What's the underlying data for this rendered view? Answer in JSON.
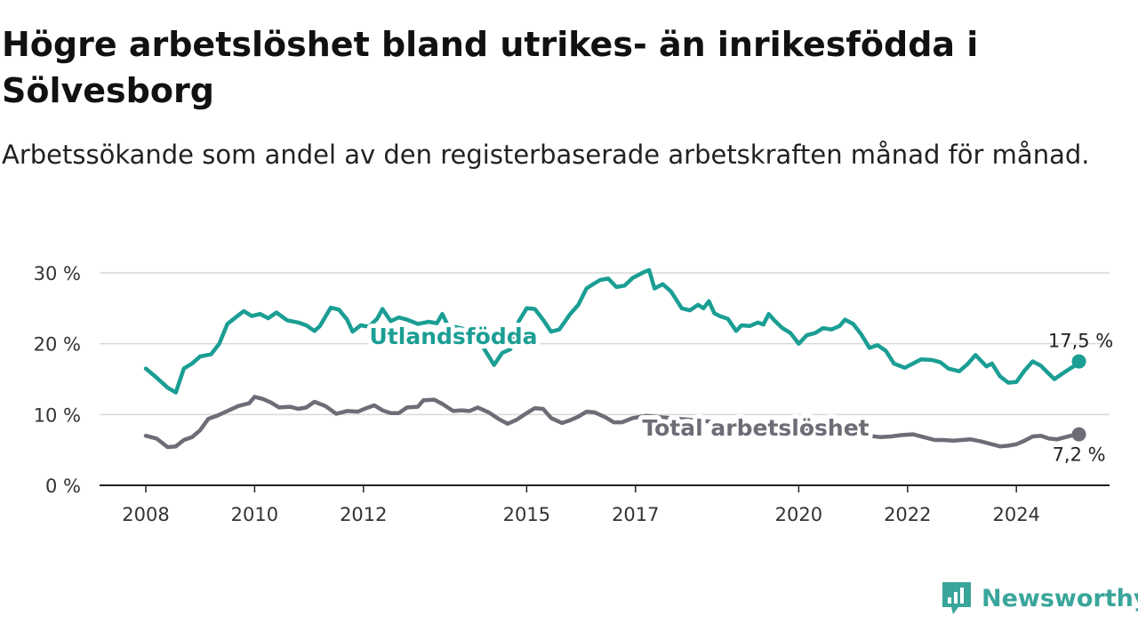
{
  "title": "Högre arbetslöshet bland utrikes- än inrikesfödda i Sölvesborg",
  "subtitle": "Arbetssökande som andel av den registerbaserade arbetskraften månad för månad.",
  "logo": {
    "text": "Newsworthy",
    "icon": "newsworthy-chart-bubble-icon",
    "color": "#3aa59b"
  },
  "chart_data": {
    "type": "line",
    "ylim": [
      0,
      30
    ],
    "y_ticks": [
      {
        "value": 0,
        "label": "0 %"
      },
      {
        "value": 10,
        "label": "10 %"
      },
      {
        "value": 20,
        "label": "20 %"
      },
      {
        "value": 30,
        "label": "30 %"
      }
    ],
    "x_ticks": [
      {
        "value": 2008,
        "label": "2008"
      },
      {
        "value": 2010,
        "label": "2010"
      },
      {
        "value": 2012,
        "label": "2012"
      },
      {
        "value": 2015,
        "label": "2015"
      },
      {
        "value": 2017,
        "label": "2017"
      },
      {
        "value": 2020,
        "label": "2020"
      },
      {
        "value": 2022,
        "label": "2022"
      },
      {
        "value": 2024,
        "label": "2024"
      }
    ],
    "grid": true,
    "series": [
      {
        "name": "Utlandsfödda",
        "color": "#1b9e94",
        "end_label": "17,5 %",
        "points": [
          [
            2008.0,
            16.5
          ],
          [
            2008.2,
            15.2
          ],
          [
            2008.4,
            13.8
          ],
          [
            2008.55,
            13.1
          ],
          [
            2008.7,
            16.5
          ],
          [
            2008.85,
            17.2
          ],
          [
            2009.0,
            18.2
          ],
          [
            2009.2,
            18.5
          ],
          [
            2009.35,
            20.0
          ],
          [
            2009.5,
            22.8
          ],
          [
            2009.7,
            24.0
          ],
          [
            2009.8,
            24.6
          ],
          [
            2009.95,
            23.9
          ],
          [
            2010.1,
            24.2
          ],
          [
            2010.25,
            23.6
          ],
          [
            2010.4,
            24.4
          ],
          [
            2010.6,
            23.3
          ],
          [
            2010.8,
            23.0
          ],
          [
            2010.95,
            22.6
          ],
          [
            2011.1,
            21.8
          ],
          [
            2011.2,
            22.5
          ],
          [
            2011.4,
            25.1
          ],
          [
            2011.55,
            24.8
          ],
          [
            2011.7,
            23.4
          ],
          [
            2011.8,
            21.7
          ],
          [
            2011.95,
            22.6
          ],
          [
            2012.1,
            22.4
          ],
          [
            2012.25,
            23.5
          ],
          [
            2012.35,
            24.9
          ],
          [
            2012.5,
            23.2
          ],
          [
            2012.65,
            23.7
          ],
          [
            2012.8,
            23.4
          ],
          [
            2013.0,
            22.8
          ],
          [
            2013.2,
            23.1
          ],
          [
            2013.35,
            22.9
          ],
          [
            2013.45,
            24.2
          ],
          [
            2013.55,
            22.6
          ],
          [
            2014.0,
            21.8
          ],
          [
            2014.2,
            19.5
          ],
          [
            2014.4,
            17.0
          ],
          [
            2014.55,
            18.7
          ],
          [
            2014.7,
            19.2
          ],
          [
            2014.85,
            23.1
          ],
          [
            2015.0,
            25.0
          ],
          [
            2015.15,
            24.9
          ],
          [
            2015.3,
            23.4
          ],
          [
            2015.45,
            21.7
          ],
          [
            2015.6,
            22.0
          ],
          [
            2015.8,
            24.2
          ],
          [
            2015.95,
            25.5
          ],
          [
            2016.1,
            27.8
          ],
          [
            2016.2,
            28.3
          ],
          [
            2016.35,
            29.0
          ],
          [
            2016.5,
            29.2
          ],
          [
            2016.65,
            28.0
          ],
          [
            2016.8,
            28.2
          ],
          [
            2016.95,
            29.3
          ],
          [
            2017.15,
            30.1
          ],
          [
            2017.25,
            30.4
          ],
          [
            2017.35,
            27.8
          ],
          [
            2017.5,
            28.4
          ],
          [
            2017.65,
            27.4
          ],
          [
            2017.85,
            25.0
          ],
          [
            2018.0,
            24.7
          ],
          [
            2018.15,
            25.5
          ],
          [
            2018.25,
            25.0
          ],
          [
            2018.35,
            26.0
          ],
          [
            2018.45,
            24.3
          ],
          [
            2018.55,
            23.9
          ],
          [
            2018.7,
            23.5
          ],
          [
            2018.85,
            21.8
          ],
          [
            2018.95,
            22.6
          ],
          [
            2019.1,
            22.5
          ],
          [
            2019.25,
            23.0
          ],
          [
            2019.35,
            22.7
          ],
          [
            2019.45,
            24.2
          ],
          [
            2019.55,
            23.3
          ],
          [
            2019.7,
            22.2
          ],
          [
            2019.85,
            21.5
          ],
          [
            2020.0,
            20.0
          ],
          [
            2020.15,
            21.2
          ],
          [
            2020.3,
            21.5
          ],
          [
            2020.45,
            22.2
          ],
          [
            2020.6,
            22.0
          ],
          [
            2020.75,
            22.5
          ],
          [
            2020.85,
            23.4
          ],
          [
            2021.0,
            22.8
          ],
          [
            2021.15,
            21.3
          ],
          [
            2021.3,
            19.4
          ],
          [
            2021.45,
            19.8
          ],
          [
            2021.6,
            19.0
          ],
          [
            2021.75,
            17.2
          ],
          [
            2021.95,
            16.6
          ],
          [
            2022.1,
            17.2
          ],
          [
            2022.25,
            17.8
          ],
          [
            2022.45,
            17.7
          ],
          [
            2022.6,
            17.4
          ],
          [
            2022.75,
            16.5
          ],
          [
            2022.95,
            16.1
          ],
          [
            2023.1,
            17.1
          ],
          [
            2023.25,
            18.4
          ],
          [
            2023.45,
            16.8
          ],
          [
            2023.55,
            17.2
          ],
          [
            2023.7,
            15.4
          ],
          [
            2023.85,
            14.5
          ],
          [
            2024.0,
            14.6
          ],
          [
            2024.15,
            16.2
          ],
          [
            2024.3,
            17.5
          ],
          [
            2024.45,
            16.9
          ],
          [
            2024.55,
            16.1
          ],
          [
            2024.7,
            15.0
          ],
          [
            2024.85,
            15.8
          ],
          [
            2024.95,
            16.3
          ],
          [
            2025.05,
            16.8
          ],
          [
            2025.15,
            17.5
          ]
        ]
      },
      {
        "name": "Total arbetslöshet",
        "color": "#6e6c76",
        "end_label": "7,2 %",
        "points": [
          [
            2008.0,
            7.0
          ],
          [
            2008.2,
            6.6
          ],
          [
            2008.4,
            5.4
          ],
          [
            2008.55,
            5.5
          ],
          [
            2008.7,
            6.4
          ],
          [
            2008.85,
            6.8
          ],
          [
            2009.0,
            7.8
          ],
          [
            2009.15,
            9.4
          ],
          [
            2009.3,
            9.8
          ],
          [
            2009.5,
            10.5
          ],
          [
            2009.7,
            11.2
          ],
          [
            2009.9,
            11.6
          ],
          [
            2010.0,
            12.5
          ],
          [
            2010.15,
            12.2
          ],
          [
            2010.3,
            11.7
          ],
          [
            2010.45,
            11.0
          ],
          [
            2010.65,
            11.1
          ],
          [
            2010.8,
            10.8
          ],
          [
            2010.95,
            11.0
          ],
          [
            2011.1,
            11.8
          ],
          [
            2011.3,
            11.2
          ],
          [
            2011.5,
            10.1
          ],
          [
            2011.7,
            10.5
          ],
          [
            2011.9,
            10.4
          ],
          [
            2012.05,
            10.9
          ],
          [
            2012.2,
            11.3
          ],
          [
            2012.35,
            10.6
          ],
          [
            2012.5,
            10.2
          ],
          [
            2012.65,
            10.2
          ],
          [
            2012.8,
            11.0
          ],
          [
            2013.0,
            11.1
          ],
          [
            2013.1,
            12.0
          ],
          [
            2013.3,
            12.1
          ],
          [
            2013.45,
            11.5
          ],
          [
            2013.65,
            10.5
          ],
          [
            2013.8,
            10.6
          ],
          [
            2013.95,
            10.5
          ],
          [
            2014.1,
            11.0
          ],
          [
            2014.3,
            10.3
          ],
          [
            2014.5,
            9.3
          ],
          [
            2014.65,
            8.7
          ],
          [
            2014.8,
            9.2
          ],
          [
            2015.0,
            10.2
          ],
          [
            2015.15,
            10.9
          ],
          [
            2015.3,
            10.8
          ],
          [
            2015.45,
            9.5
          ],
          [
            2015.65,
            8.8
          ],
          [
            2015.8,
            9.2
          ],
          [
            2015.95,
            9.7
          ],
          [
            2016.1,
            10.4
          ],
          [
            2016.25,
            10.3
          ],
          [
            2016.45,
            9.6
          ],
          [
            2016.6,
            8.9
          ],
          [
            2016.75,
            8.9
          ],
          [
            2016.95,
            9.5
          ],
          [
            2017.2,
            9.8
          ],
          [
            2021.3,
            7.0
          ],
          [
            2021.5,
            6.8
          ],
          [
            2021.7,
            6.9
          ],
          [
            2021.9,
            7.1
          ],
          [
            2022.1,
            7.2
          ],
          [
            2022.3,
            6.8
          ],
          [
            2022.5,
            6.4
          ],
          [
            2022.65,
            6.4
          ],
          [
            2022.85,
            6.3
          ],
          [
            2023.0,
            6.4
          ],
          [
            2023.15,
            6.5
          ],
          [
            2023.35,
            6.2
          ],
          [
            2023.5,
            5.9
          ],
          [
            2023.7,
            5.5
          ],
          [
            2023.85,
            5.6
          ],
          [
            2024.0,
            5.8
          ],
          [
            2024.15,
            6.3
          ],
          [
            2024.3,
            6.9
          ],
          [
            2024.45,
            7.0
          ],
          [
            2024.6,
            6.6
          ],
          [
            2024.75,
            6.5
          ],
          [
            2024.9,
            6.8
          ],
          [
            2025.0,
            7.0
          ],
          [
            2025.15,
            7.2
          ]
        ]
      }
    ]
  }
}
